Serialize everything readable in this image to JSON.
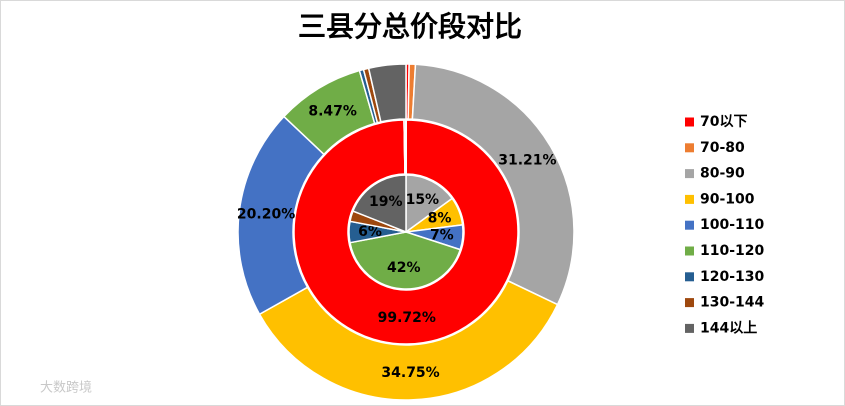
{
  "chart_data": {
    "type": "donut",
    "title": "三县分总价段对比",
    "watermark": "大数跨境",
    "categories": [
      "70以下",
      "70-80",
      "80-90",
      "90-100",
      "100-110",
      "110-120",
      "120-130",
      "130-144",
      "144以上"
    ],
    "colors": [
      "#ff0000",
      "#ed7d31",
      "#a5a5a5",
      "#ffc000",
      "#4472c4",
      "#70ad47",
      "#255e91",
      "#9e480e",
      "#636363"
    ],
    "legend": "right",
    "series": [
      {
        "values": [
          0,
          0,
          15,
          8,
          7,
          42,
          6,
          3,
          19
        ],
        "value_labels": [
          null,
          null,
          "15%",
          "8%",
          "7%",
          "42%",
          "6%",
          null,
          "19%"
        ]
      },
      {
        "values": [
          99.72,
          0,
          0.28,
          0,
          0,
          0,
          0,
          0,
          0
        ],
        "value_labels": [
          "99.72%",
          null,
          null,
          null,
          null,
          null,
          null,
          null,
          null
        ]
      },
      {
        "values": [
          0.3,
          0.6,
          31.21,
          34.75,
          20.2,
          8.47,
          0.4,
          0.5,
          3.57
        ],
        "value_labels": [
          null,
          null,
          "31.21%",
          "34.75%",
          "20.20%",
          "8.47%",
          null,
          null,
          null
        ]
      }
    ]
  }
}
